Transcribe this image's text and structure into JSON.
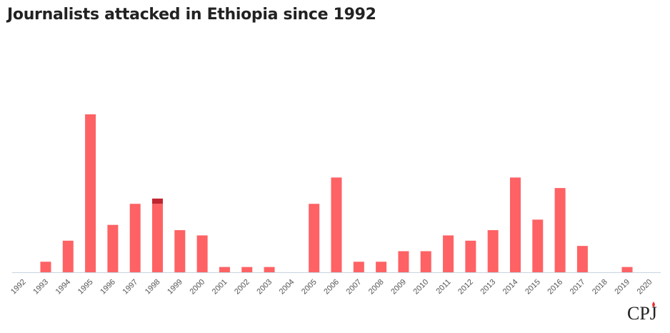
{
  "title": "Journalists attacked in Ethiopia since 1992",
  "logo_text": "CPJ",
  "colors": {
    "bar": "#fe6264",
    "bar_highlight": "#c0262f",
    "axis": "#c8d4e0",
    "tick_text": "#555555"
  },
  "chart_data": {
    "type": "bar",
    "title": "Journalists attacked in Ethiopia since 1992",
    "xlabel": "",
    "ylabel": "",
    "ylim": [
      0,
      30
    ],
    "grid": false,
    "categories": [
      "1992",
      "1993",
      "1994",
      "1995",
      "1996",
      "1997",
      "1998",
      "1999",
      "2000",
      "2001",
      "2002",
      "2003",
      "2004",
      "2005",
      "2006",
      "2007",
      "2008",
      "2009",
      "2010",
      "2011",
      "2012",
      "2013",
      "2014",
      "2015",
      "2016",
      "2017",
      "2018",
      "2019",
      "2020"
    ],
    "series": [
      {
        "values": [
          0,
          2,
          6,
          30,
          9,
          13,
          13,
          8,
          7,
          1,
          1,
          1,
          0,
          13,
          18,
          2,
          2,
          4,
          4,
          7,
          6,
          8,
          18,
          10,
          16,
          5,
          0,
          1,
          0
        ],
        "color": "#fe6264"
      },
      {
        "values": [
          0,
          0,
          0,
          0,
          0,
          0,
          1,
          0,
          0,
          0,
          0,
          0,
          0,
          0,
          0,
          0,
          0,
          0,
          0,
          0,
          0,
          0,
          0,
          0,
          0,
          0,
          0,
          0,
          0
        ],
        "color": "#c0262f"
      }
    ]
  }
}
